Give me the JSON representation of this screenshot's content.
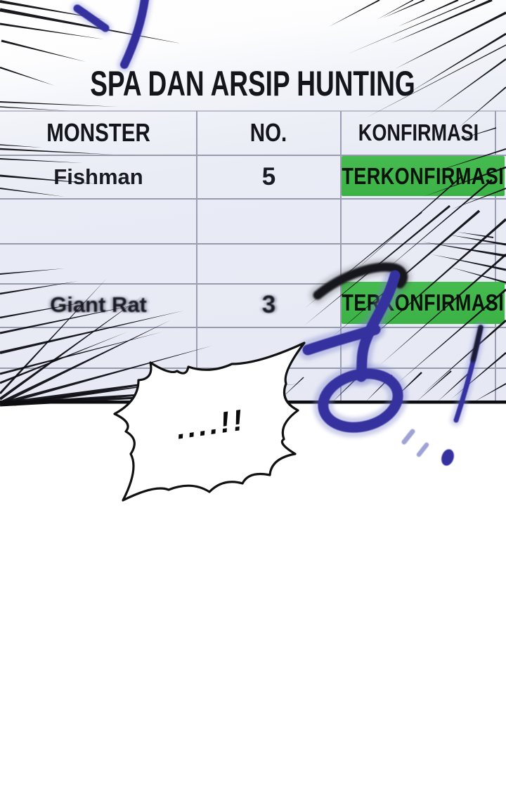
{
  "title": "SPA DAN ARSIP HUNTING",
  "table": {
    "headers": [
      "MONSTER",
      "NO.",
      "KONFIRMASI"
    ],
    "rows": [
      {
        "monster": "Fishman",
        "no": "5",
        "status": "TERKONFIRMASI"
      },
      {
        "monster": "",
        "no": "",
        "status": ""
      },
      {
        "monster": "",
        "no": "",
        "status": ""
      },
      {
        "monster": "Giant Rat",
        "no": "3",
        "status": "TERKONFIRMASI"
      },
      {
        "monster": "",
        "no": "",
        "status": ""
      },
      {
        "monster": "",
        "no": "",
        "status": ""
      }
    ]
  },
  "speech_bubble": {
    "text": "....!!"
  },
  "sfx": {
    "character": "쿵",
    "exclamation": "!"
  },
  "colors": {
    "badge_green": "#3fb54a",
    "sfx_blue": "#34319f",
    "panel_bg": "#e9ebf5",
    "grid_line": "#969cae",
    "ink_black": "#0d0d12"
  }
}
